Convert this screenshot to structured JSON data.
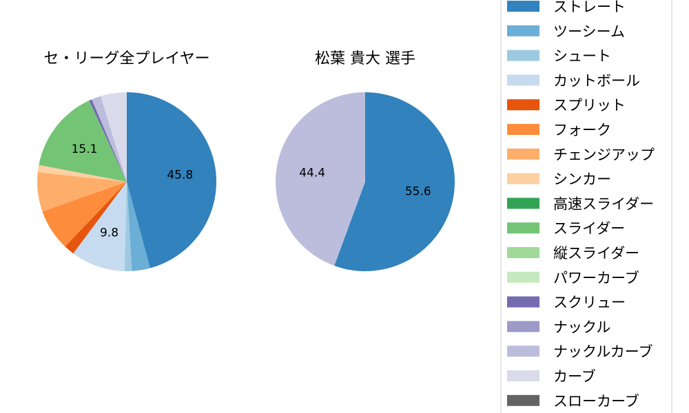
{
  "chart_data": [
    {
      "type": "pie",
      "title": "セ・リーグ全プレイヤー",
      "slices": [
        {
          "label": "ストレート",
          "value": 45.8,
          "color": "#3182bd",
          "shown_label": "45.8"
        },
        {
          "label": "ツーシーム",
          "value": 3.3,
          "color": "#6baed6",
          "shown_label": ""
        },
        {
          "label": "シュート",
          "value": 1.3,
          "color": "#9ecae1",
          "shown_label": ""
        },
        {
          "label": "カットボール",
          "value": 9.8,
          "color": "#c6dbef",
          "shown_label": "9.8"
        },
        {
          "label": "スプリット",
          "value": 1.9,
          "color": "#e6550d",
          "shown_label": ""
        },
        {
          "label": "フォーク",
          "value": 7.5,
          "color": "#fd8d3c",
          "shown_label": ""
        },
        {
          "label": "チェンジアップ",
          "value": 7.1,
          "color": "#fdae6b",
          "shown_label": ""
        },
        {
          "label": "シンカー",
          "value": 1.3,
          "color": "#fdd0a2",
          "shown_label": ""
        },
        {
          "label": "スライダー",
          "value": 15.1,
          "color": "#74c476",
          "shown_label": "15.1"
        },
        {
          "label": "スクリュー",
          "value": 0.5,
          "color": "#756bb1",
          "shown_label": ""
        },
        {
          "label": "ナックルカーブ",
          "value": 1.7,
          "color": "#bcbddc",
          "shown_label": ""
        },
        {
          "label": "カーブ",
          "value": 4.7,
          "color": "#dadaeb",
          "shown_label": ""
        }
      ]
    },
    {
      "type": "pie",
      "title": "松葉 貴大 選手",
      "slices": [
        {
          "label": "ストレート",
          "value": 55.6,
          "color": "#3182bd",
          "shown_label": "55.6"
        },
        {
          "label": "ナックルカーブ",
          "value": 44.4,
          "color": "#bcbddc",
          "shown_label": "44.4"
        }
      ]
    }
  ],
  "legend": [
    {
      "label": "ストレート",
      "color": "#3182bd"
    },
    {
      "label": "ツーシーム",
      "color": "#6baed6"
    },
    {
      "label": "シュート",
      "color": "#9ecae1"
    },
    {
      "label": "カットボール",
      "color": "#c6dbef"
    },
    {
      "label": "スプリット",
      "color": "#e6550d"
    },
    {
      "label": "フォーク",
      "color": "#fd8d3c"
    },
    {
      "label": "チェンジアップ",
      "color": "#fdae6b"
    },
    {
      "label": "シンカー",
      "color": "#fdd0a2"
    },
    {
      "label": "高速スライダー",
      "color": "#31a354"
    },
    {
      "label": "スライダー",
      "color": "#74c476"
    },
    {
      "label": "縦スライダー",
      "color": "#a1d99b"
    },
    {
      "label": "パワーカーブ",
      "color": "#c7e9c0"
    },
    {
      "label": "スクリュー",
      "color": "#756bb1"
    },
    {
      "label": "ナックル",
      "color": "#9e9ac8"
    },
    {
      "label": "ナックルカーブ",
      "color": "#bcbddc"
    },
    {
      "label": "カーブ",
      "color": "#dadaeb"
    },
    {
      "label": "スローカーブ",
      "color": "#636363"
    }
  ]
}
